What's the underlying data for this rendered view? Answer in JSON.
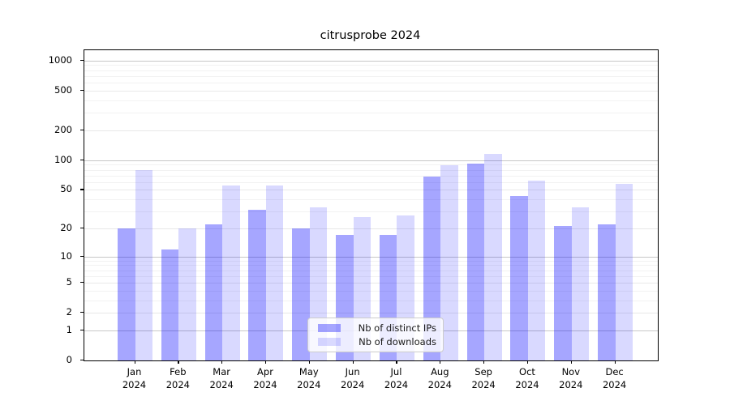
{
  "title": "citrusprobe 2024",
  "legend": {
    "items": [
      {
        "label": "Nb of distinct IPs",
        "color": "rgba(0,0,255,0.35)",
        "color_hex_on_white": "#a6a6ff"
      },
      {
        "label": "Nb of downloads",
        "color": "rgba(0,0,255,0.15)",
        "color_hex_on_white": "#d9d9ff"
      }
    ]
  },
  "axes": {
    "y_tick_labels": [
      "0",
      "1",
      "2",
      "5",
      "10",
      "20",
      "50",
      "100",
      "200",
      "500",
      "1000"
    ],
    "y_tick_values": [
      0,
      1,
      2,
      5,
      10,
      20,
      50,
      100,
      200,
      500,
      1000
    ],
    "x_tick_line1": [
      "Jan",
      "Feb",
      "Mar",
      "Apr",
      "May",
      "Jun",
      "Jul",
      "Aug",
      "Sep",
      "Oct",
      "Nov",
      "Dec"
    ],
    "x_tick_line2": [
      "2024",
      "2024",
      "2024",
      "2024",
      "2024",
      "2024",
      "2024",
      "2024",
      "2024",
      "2024",
      "2024",
      "2024"
    ]
  },
  "chart_data": {
    "type": "bar",
    "title": "citrusprobe 2024",
    "xlabel": "",
    "ylabel": "",
    "categories": [
      "Jan 2024",
      "Feb 2024",
      "Mar 2024",
      "Apr 2024",
      "May 2024",
      "Jun 2024",
      "Jul 2024",
      "Aug 2024",
      "Sep 2024",
      "Oct 2024",
      "Nov 2024",
      "Dec 2024"
    ],
    "series": [
      {
        "name": "Nb of distinct IPs",
        "values": [
          20,
          12,
          22,
          31,
          20,
          17,
          17,
          68,
          92,
          43,
          21,
          22
        ]
      },
      {
        "name": "Nb of downloads",
        "values": [
          80,
          20,
          55,
          55,
          33,
          26,
          27,
          88,
          115,
          62,
          33,
          57
        ]
      }
    ],
    "yscale": "log1p",
    "ylim": [
      0,
      1100
    ],
    "y_ticks": [
      0,
      1,
      2,
      5,
      10,
      20,
      50,
      100,
      200,
      500,
      1000
    ],
    "grid": true,
    "legend_position": "lower center"
  }
}
